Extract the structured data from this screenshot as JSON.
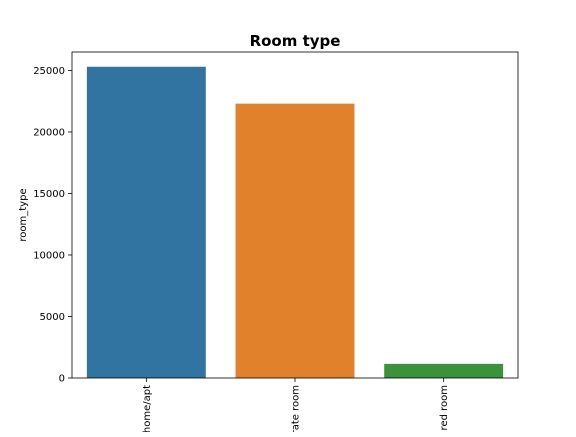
{
  "chart_data": {
    "type": "bar",
    "title": "Room type",
    "xlabel": "",
    "ylabel": "room_type",
    "categories": [
      "home/apt",
      "rate room",
      "red room"
    ],
    "values": [
      25300,
      22300,
      1150
    ],
    "colors": [
      "#3274a1",
      "#e1812c",
      "#3a923a"
    ],
    "ylim": [
      0,
      26500
    ],
    "yticks": [
      0,
      5000,
      10000,
      15000,
      20000,
      25000
    ],
    "ytick_labels": [
      "0",
      "5000",
      "10000",
      "15000",
      "20000",
      "25000"
    ],
    "grid": false,
    "legend": "none"
  }
}
